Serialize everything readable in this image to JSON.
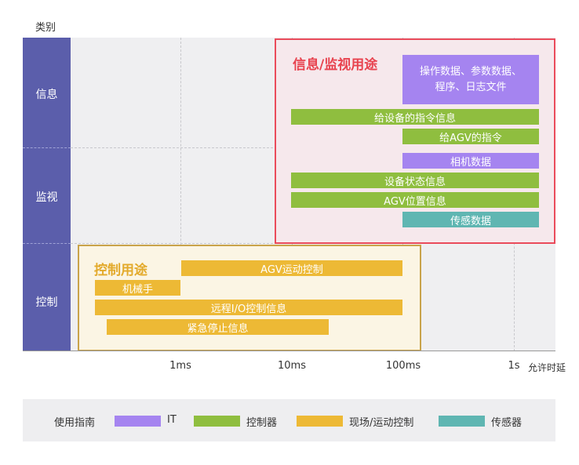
{
  "header": {
    "category_label": "类别"
  },
  "rows": {
    "info": "信息",
    "monitor": "监视",
    "control": "控制"
  },
  "axis": {
    "ticks": [
      "1ms",
      "10ms",
      "100ms",
      "1s"
    ],
    "label": "允许时延"
  },
  "regions": {
    "info_title": "信息/监视用途",
    "control_title": "控制用途"
  },
  "bars": {
    "op_data_line1": "操作数据、参数数据、",
    "op_data_line2": "程序、日志文件",
    "device_cmd": "给设备的指令信息",
    "agv_cmd": "给AGV的指令",
    "camera": "相机数据",
    "device_status": "设备状态信息",
    "agv_position": "AGV位置信息",
    "sensor_data": "传感数据",
    "agv_motion": "AGV运动控制",
    "robot_arm": "机械手",
    "remote_io": "远程I/O控制信息",
    "emergency_stop": "紧急停止信息"
  },
  "legend": {
    "title": "使用指南",
    "items": [
      {
        "label": "IT",
        "color": "#a584f0"
      },
      {
        "label": "控制器",
        "color": "#8fbe3f"
      },
      {
        "label": "现场/运动控制",
        "color": "#edb935"
      },
      {
        "label": "传感器",
        "color": "#5fb6b2"
      }
    ]
  },
  "colors": {
    "sidebar": "#5b5eab",
    "it": "#a584f0",
    "controller": "#8fbe3f",
    "field": "#edb935",
    "sensor": "#5fb6b2",
    "info_border": "#ea4b5b",
    "control_border": "#c9a34a"
  }
}
